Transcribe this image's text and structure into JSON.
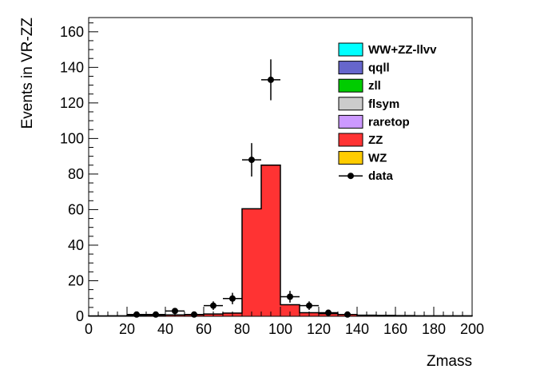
{
  "chart_data": {
    "type": "bar",
    "stacked": true,
    "xlabel": "Zmass",
    "ylabel": "Events in VR-ZZ",
    "xlim": [
      0,
      200
    ],
    "ylim": [
      0,
      168
    ],
    "bin_width": 10,
    "bin_edges": [
      0,
      10,
      20,
      30,
      40,
      50,
      60,
      70,
      80,
      90,
      100,
      110,
      120,
      130,
      140,
      150,
      160,
      170,
      180,
      190,
      200
    ],
    "x_ticks": [
      0,
      20,
      40,
      60,
      80,
      100,
      120,
      140,
      160,
      180,
      200
    ],
    "y_ticks": [
      0,
      20,
      40,
      60,
      80,
      100,
      120,
      140,
      160
    ],
    "grid": false,
    "legend_position": "top-right",
    "series": [
      {
        "name": "WW+ZZ-llvv",
        "color": "#00ffff",
        "values": [
          0,
          0,
          0,
          0,
          0,
          0,
          0,
          0,
          0,
          0,
          0,
          0,
          0,
          0,
          0,
          0,
          0,
          0,
          0,
          0
        ]
      },
      {
        "name": "qqll",
        "color": "#6666cc",
        "values": [
          0,
          0,
          0,
          0,
          0,
          0,
          0,
          0,
          0,
          0,
          0,
          0,
          0,
          0,
          0,
          0,
          0,
          0,
          0,
          0
        ]
      },
      {
        "name": "zll",
        "color": "#00cc00",
        "values": [
          0,
          0,
          0,
          0,
          0,
          0,
          0,
          0,
          0,
          0,
          0,
          0,
          0,
          0,
          0,
          0,
          0,
          0,
          0,
          0
        ]
      },
      {
        "name": "flsym",
        "color": "#cccccc",
        "values": [
          0,
          0,
          0,
          0,
          0,
          0,
          0,
          0,
          0,
          0,
          0,
          0,
          0,
          0,
          0,
          0,
          0,
          0,
          0,
          0
        ]
      },
      {
        "name": "raretop",
        "color": "#cc99ff",
        "values": [
          0,
          0,
          0,
          0,
          0,
          0,
          0,
          0,
          0,
          0,
          0,
          0,
          0,
          0,
          0,
          0,
          0,
          0,
          0,
          0
        ]
      },
      {
        "name": "ZZ",
        "color": "#ff3333",
        "values": [
          0.2,
          0.3,
          0.5,
          0.6,
          0.8,
          0.9,
          1.3,
          1.8,
          60.5,
          85,
          6.5,
          2,
          1.5,
          1,
          0.6,
          0.5,
          0.4,
          0.3,
          0.3,
          0.3
        ]
      },
      {
        "name": "WZ",
        "color": "#ffcc00",
        "values": [
          0,
          0,
          0,
          0,
          0,
          0,
          0,
          0,
          0,
          0,
          0,
          0,
          0,
          0,
          0,
          0,
          0,
          0,
          0,
          0
        ]
      }
    ],
    "data": {
      "name": "data",
      "color": "#000000",
      "x": [
        25,
        35,
        45,
        55,
        65,
        75,
        85,
        95,
        105,
        115,
        125,
        135
      ],
      "y": [
        1,
        1,
        3,
        1,
        6,
        10,
        88,
        133,
        11,
        6,
        2,
        1
      ],
      "yerr": [
        1,
        1,
        1.7,
        1,
        2.4,
        3.2,
        9.4,
        11.5,
        3.3,
        2.4,
        1.4,
        1
      ]
    }
  }
}
